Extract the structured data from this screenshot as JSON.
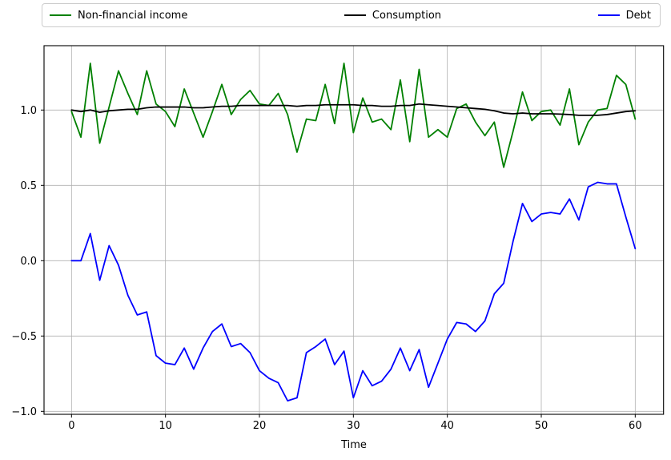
{
  "figure": {
    "background_color": "#ffffff",
    "grid_color": "#b0b0b0",
    "spine_color": "#000000",
    "legend_border_color": "#cccccc"
  },
  "legend": {
    "position": "top",
    "entries": [
      {
        "label": "Non-financial income",
        "color": "#008000"
      },
      {
        "label": "Consumption",
        "color": "#000000"
      },
      {
        "label": "Debt",
        "color": "#0000ff"
      }
    ]
  },
  "axes": {
    "xlabel": "Time",
    "ylabel": "",
    "x_tick_labels": [
      "0",
      "10",
      "20",
      "30",
      "40",
      "50",
      "60"
    ],
    "x_tick_values": [
      0,
      10,
      20,
      30,
      40,
      50,
      60
    ],
    "y_tick_labels": [
      "1.0",
      "0.5",
      "0.0",
      "−0.5",
      "−1.0"
    ],
    "y_tick_values": [
      1.0,
      0.5,
      0.0,
      -0.5,
      -1.0
    ]
  },
  "chart_data": {
    "type": "line",
    "title": "",
    "xlabel": "Time",
    "ylabel": "",
    "grid": true,
    "legend_position": "top",
    "xlim": [
      -2.9,
      63.0
    ],
    "ylim": [
      -1.02,
      1.43
    ],
    "x": [
      0,
      1,
      2,
      3,
      4,
      5,
      6,
      7,
      8,
      9,
      10,
      11,
      12,
      13,
      14,
      15,
      16,
      17,
      18,
      19,
      20,
      21,
      22,
      23,
      24,
      25,
      26,
      27,
      28,
      29,
      30,
      31,
      32,
      33,
      34,
      35,
      36,
      37,
      38,
      39,
      40,
      41,
      42,
      43,
      44,
      45,
      46,
      47,
      48,
      49,
      50,
      51,
      52,
      53,
      54,
      55,
      56,
      57,
      58,
      59,
      60
    ],
    "series": [
      {
        "name": "Non-financial income",
        "color": "#008000",
        "values": [
          0.99,
          0.82,
          1.31,
          0.78,
          1.02,
          1.26,
          1.11,
          0.97,
          1.26,
          1.04,
          0.99,
          0.89,
          1.14,
          0.98,
          0.82,
          0.99,
          1.17,
          0.97,
          1.07,
          1.13,
          1.04,
          1.03,
          1.11,
          0.97,
          0.72,
          0.94,
          0.93,
          1.17,
          0.91,
          1.31,
          0.85,
          1.08,
          0.92,
          0.94,
          0.87,
          1.2,
          0.79,
          1.27,
          0.82,
          0.87,
          0.82,
          1.01,
          1.04,
          0.92,
          0.83,
          0.92,
          0.62,
          0.86,
          1.12,
          0.93,
          0.99,
          1.0,
          0.9,
          1.14,
          0.77,
          0.92,
          1.0,
          1.01,
          1.23,
          1.17,
          0.94
        ]
      },
      {
        "name": "Consumption",
        "color": "#000000",
        "values": [
          1.0,
          0.99,
          1.0,
          0.985,
          0.995,
          1.0,
          1.005,
          1.005,
          1.015,
          1.02,
          1.02,
          1.02,
          1.02,
          1.015,
          1.015,
          1.02,
          1.025,
          1.025,
          1.03,
          1.03,
          1.03,
          1.03,
          1.03,
          1.03,
          1.025,
          1.03,
          1.03,
          1.035,
          1.035,
          1.035,
          1.035,
          1.03,
          1.03,
          1.025,
          1.025,
          1.03,
          1.03,
          1.04,
          1.035,
          1.03,
          1.025,
          1.02,
          1.015,
          1.01,
          1.005,
          0.995,
          0.98,
          0.975,
          0.98,
          0.975,
          0.975,
          0.975,
          0.973,
          0.97,
          0.965,
          0.965,
          0.965,
          0.97,
          0.98,
          0.99,
          0.995
        ]
      },
      {
        "name": "Debt",
        "color": "#0000ff",
        "values": [
          0.0,
          0.0,
          0.18,
          -0.13,
          0.1,
          -0.03,
          -0.23,
          -0.36,
          -0.34,
          -0.63,
          -0.68,
          -0.69,
          -0.58,
          -0.72,
          -0.58,
          -0.47,
          -0.42,
          -0.57,
          -0.55,
          -0.61,
          -0.73,
          -0.78,
          -0.81,
          -0.93,
          -0.91,
          -0.61,
          -0.57,
          -0.52,
          -0.69,
          -0.6,
          -0.91,
          -0.73,
          -0.83,
          -0.8,
          -0.72,
          -0.58,
          -0.73,
          -0.59,
          -0.84,
          -0.68,
          -0.52,
          -0.41,
          -0.42,
          -0.47,
          -0.4,
          -0.22,
          -0.15,
          0.13,
          0.38,
          0.26,
          0.31,
          0.32,
          0.31,
          0.41,
          0.27,
          0.49,
          0.52,
          0.51,
          0.51,
          0.29,
          0.08
        ]
      }
    ]
  }
}
